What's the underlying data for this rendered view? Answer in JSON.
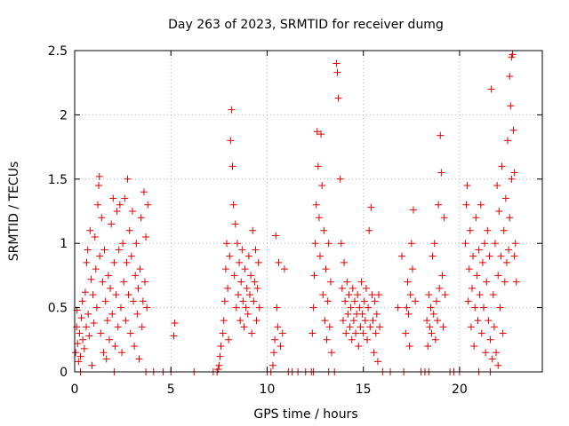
{
  "chart_data": {
    "type": "scatter",
    "title": "Day 263 of 2023, SRMTID for receiver dumg",
    "xlabel": "GPS time / hours",
    "ylabel": "SRMTID / TECUs",
    "xlim": [
      0,
      24.3
    ],
    "ylim": [
      0,
      2.5
    ],
    "x_ticks": [
      0,
      5,
      10,
      15,
      20
    ],
    "x_tick_labels": [
      "0",
      "5",
      "10",
      "15",
      "20"
    ],
    "y_ticks": [
      0,
      0.5,
      1,
      1.5,
      2,
      2.5
    ],
    "y_tick_labels": [
      "0",
      "0.5",
      "1",
      "1.5",
      "2",
      "2.5"
    ],
    "grid": true,
    "marker": "+",
    "color": "#e00000",
    "series": [
      {
        "name": "SRMTID",
        "points": [
          [
            0.05,
            0.15
          ],
          [
            0.1,
            0.35
          ],
          [
            0.12,
            0.48
          ],
          [
            0.15,
            0.22
          ],
          [
            0.2,
            0.08
          ],
          [
            0.25,
            0.3
          ],
          [
            0.3,
            0.12
          ],
          [
            0.35,
            0.42
          ],
          [
            0.4,
            0.55
          ],
          [
            0.42,
            0.25
          ],
          [
            0.5,
            0.18
          ],
          [
            0.55,
            0.62
          ],
          [
            0.6,
            0.35
          ],
          [
            0.62,
            0.85
          ],
          [
            0.68,
            0.95
          ],
          [
            0.7,
            0.45
          ],
          [
            0.75,
            0.28
          ],
          [
            0.8,
            1.1
          ],
          [
            0.85,
            0.72
          ],
          [
            0.9,
            0.05
          ],
          [
            0.95,
            0.6
          ],
          [
            1.0,
            0.38
          ],
          [
            1.05,
            1.05
          ],
          [
            1.1,
            0.8
          ],
          [
            1.15,
            0.5
          ],
          [
            1.2,
            1.3
          ],
          [
            1.25,
            1.45
          ],
          [
            1.28,
            1.52
          ],
          [
            1.3,
            0.9
          ],
          [
            1.35,
            0.3
          ],
          [
            1.4,
            1.2
          ],
          [
            1.45,
            0.7
          ],
          [
            1.5,
            0.15
          ],
          [
            1.55,
            0.95
          ],
          [
            1.6,
            0.55
          ],
          [
            1.65,
            0.1
          ],
          [
            1.7,
            0.4
          ],
          [
            1.75,
            0.75
          ],
          [
            1.8,
            0.25
          ],
          [
            1.85,
            0.65
          ],
          [
            1.9,
            1.15
          ],
          [
            1.95,
            0.45
          ],
          [
            2.0,
            1.35
          ],
          [
            2.05,
            0.85
          ],
          [
            2.1,
            0.2
          ],
          [
            2.15,
            0.6
          ],
          [
            2.2,
            1.25
          ],
          [
            2.25,
            0.35
          ],
          [
            2.3,
            0.95
          ],
          [
            2.35,
            1.3
          ],
          [
            2.4,
            0.5
          ],
          [
            2.45,
            0.15
          ],
          [
            2.5,
            1.0
          ],
          [
            2.55,
            0.7
          ],
          [
            2.6,
            1.35
          ],
          [
            2.65,
            0.4
          ],
          [
            2.7,
            0.85
          ],
          [
            2.75,
            1.5
          ],
          [
            2.8,
            0.6
          ],
          [
            2.85,
            1.1
          ],
          [
            2.9,
            0.3
          ],
          [
            2.95,
            0.9
          ],
          [
            3.0,
            1.25
          ],
          [
            3.05,
            0.55
          ],
          [
            3.1,
            0.2
          ],
          [
            3.15,
            0.75
          ],
          [
            3.2,
            1.0
          ],
          [
            3.25,
            0.45
          ],
          [
            3.3,
            0.65
          ],
          [
            3.35,
            0.1
          ],
          [
            3.4,
            0.8
          ],
          [
            3.45,
            1.2
          ],
          [
            3.5,
            0.35
          ],
          [
            3.55,
            0.55
          ],
          [
            3.6,
            1.4
          ],
          [
            3.65,
            0.7
          ],
          [
            3.7,
            1.05
          ],
          [
            3.75,
            0.5
          ],
          [
            3.8,
            1.3
          ],
          [
            0.3,
            0.0
          ],
          [
            4.1,
            0.0
          ],
          [
            4.6,
            0.0
          ],
          [
            5.0,
            0.0
          ],
          [
            5.15,
            0.28
          ],
          [
            5.2,
            0.38
          ],
          [
            6.2,
            0.0
          ],
          [
            7.2,
            0.0
          ],
          [
            7.4,
            0.0
          ],
          [
            7.5,
            0.05
          ],
          [
            7.55,
            0.12
          ],
          [
            7.6,
            0.2
          ],
          [
            7.7,
            0.3
          ],
          [
            7.75,
            0.4
          ],
          [
            7.8,
            0.55
          ],
          [
            7.85,
            0.8
          ],
          [
            7.9,
            1.0
          ],
          [
            7.95,
            0.65
          ],
          [
            8.0,
            0.25
          ],
          [
            8.05,
            0.9
          ],
          [
            8.1,
            1.8
          ],
          [
            8.15,
            2.04
          ],
          [
            8.2,
            1.6
          ],
          [
            8.25,
            1.3
          ],
          [
            8.3,
            0.75
          ],
          [
            8.35,
            1.15
          ],
          [
            8.4,
            0.5
          ],
          [
            8.45,
            1.0
          ],
          [
            8.5,
            0.6
          ],
          [
            8.55,
            0.85
          ],
          [
            8.6,
            0.4
          ],
          [
            8.65,
            0.7
          ],
          [
            8.7,
            0.95
          ],
          [
            8.75,
            0.55
          ],
          [
            8.8,
            0.35
          ],
          [
            8.85,
            0.8
          ],
          [
            8.9,
            0.5
          ],
          [
            8.95,
            0.65
          ],
          [
            9.0,
            0.45
          ],
          [
            9.05,
            0.9
          ],
          [
            9.1,
            0.6
          ],
          [
            9.15,
            0.75
          ],
          [
            9.2,
            0.3
          ],
          [
            9.25,
            1.1
          ],
          [
            9.3,
            0.55
          ],
          [
            9.35,
            0.7
          ],
          [
            9.4,
            0.95
          ],
          [
            9.45,
            0.4
          ],
          [
            9.5,
            0.65
          ],
          [
            9.55,
            0.85
          ],
          [
            9.6,
            0.5
          ],
          [
            10.0,
            0.0
          ],
          [
            10.2,
            0.0
          ],
          [
            10.3,
            0.05
          ],
          [
            10.35,
            0.15
          ],
          [
            10.4,
            0.25
          ],
          [
            10.45,
            1.06
          ],
          [
            10.5,
            0.5
          ],
          [
            10.55,
            0.35
          ],
          [
            10.6,
            0.85
          ],
          [
            10.7,
            0.2
          ],
          [
            10.8,
            0.3
          ],
          [
            10.9,
            0.8
          ],
          [
            11.1,
            0.0
          ],
          [
            11.3,
            0.0
          ],
          [
            11.6,
            0.0
          ],
          [
            12.0,
            0.0
          ],
          [
            12.3,
            0.0
          ],
          [
            12.35,
            0.3
          ],
          [
            12.4,
            0.5
          ],
          [
            12.45,
            0.75
          ],
          [
            12.5,
            1.0
          ],
          [
            12.55,
            1.3
          ],
          [
            12.6,
            1.87
          ],
          [
            12.65,
            1.6
          ],
          [
            12.7,
            1.2
          ],
          [
            12.75,
            0.9
          ],
          [
            12.8,
            1.85
          ],
          [
            12.85,
            1.45
          ],
          [
            12.9,
            0.6
          ],
          [
            12.95,
            1.1
          ],
          [
            13.0,
            0.4
          ],
          [
            13.05,
            0.8
          ],
          [
            13.1,
            0.25
          ],
          [
            13.15,
            0.55
          ],
          [
            13.2,
            1.0
          ],
          [
            13.25,
            0.35
          ],
          [
            13.3,
            0.7
          ],
          [
            13.35,
            0.15
          ],
          [
            13.5,
            0.0
          ],
          [
            13.6,
            2.4
          ],
          [
            13.65,
            2.33
          ],
          [
            13.7,
            2.13
          ],
          [
            13.8,
            1.5
          ],
          [
            13.85,
            1.0
          ],
          [
            13.9,
            0.65
          ],
          [
            13.95,
            0.4
          ],
          [
            14.0,
            0.85
          ],
          [
            14.05,
            0.55
          ],
          [
            14.1,
            0.3
          ],
          [
            14.15,
            0.7
          ],
          [
            14.2,
            0.45
          ],
          [
            14.25,
            0.6
          ],
          [
            14.3,
            0.35
          ],
          [
            14.35,
            0.5
          ],
          [
            14.4,
            0.25
          ],
          [
            14.45,
            0.65
          ],
          [
            14.5,
            0.4
          ],
          [
            14.55,
            0.55
          ],
          [
            14.6,
            0.3
          ],
          [
            14.65,
            0.45
          ],
          [
            14.7,
            0.6
          ],
          [
            14.75,
            0.2
          ],
          [
            14.8,
            0.5
          ],
          [
            14.85,
            0.35
          ],
          [
            14.9,
            0.7
          ],
          [
            14.95,
            0.45
          ],
          [
            15.0,
            0.3
          ],
          [
            15.05,
            0.55
          ],
          [
            15.1,
            0.4
          ],
          [
            15.15,
            0.65
          ],
          [
            15.2,
            0.25
          ],
          [
            15.25,
            0.5
          ],
          [
            15.3,
            1.1
          ],
          [
            15.35,
            0.35
          ],
          [
            15.4,
            1.28
          ],
          [
            15.45,
            0.6
          ],
          [
            15.5,
            0.4
          ],
          [
            15.55,
            0.15
          ],
          [
            15.6,
            0.55
          ],
          [
            15.65,
            0.3
          ],
          [
            15.7,
            0.45
          ],
          [
            15.75,
            0.08
          ],
          [
            15.8,
            0.6
          ],
          [
            15.85,
            0.35
          ],
          [
            16.0,
            0.0
          ],
          [
            16.4,
            0.0
          ],
          [
            16.8,
            0.5
          ],
          [
            17.0,
            0.9
          ],
          [
            17.2,
            0.3
          ],
          [
            17.25,
            0.5
          ],
          [
            17.3,
            0.7
          ],
          [
            17.35,
            0.45
          ],
          [
            17.4,
            0.2
          ],
          [
            17.45,
            0.6
          ],
          [
            17.5,
            1.0
          ],
          [
            17.55,
            0.8
          ],
          [
            17.6,
            1.26
          ],
          [
            17.7,
            0.55
          ],
          [
            18.0,
            0.0
          ],
          [
            18.2,
            0.0
          ],
          [
            18.3,
            0.4
          ],
          [
            18.35,
            0.2
          ],
          [
            18.4,
            0.6
          ],
          [
            18.45,
            0.35
          ],
          [
            18.5,
            0.5
          ],
          [
            18.55,
            0.3
          ],
          [
            18.6,
            0.9
          ],
          [
            18.65,
            0.45
          ],
          [
            18.7,
            1.0
          ],
          [
            18.75,
            0.25
          ],
          [
            18.8,
            0.55
          ],
          [
            18.85,
            0.4
          ],
          [
            18.9,
            1.3
          ],
          [
            18.95,
            0.65
          ],
          [
            19.0,
            1.84
          ],
          [
            19.05,
            1.55
          ],
          [
            19.1,
            0.75
          ],
          [
            19.15,
            0.35
          ],
          [
            19.2,
            1.2
          ],
          [
            19.25,
            0.6
          ],
          [
            19.5,
            0.0
          ],
          [
            19.7,
            0.0
          ],
          [
            20.0,
            0.0
          ],
          [
            20.3,
            1.0
          ],
          [
            20.35,
            1.3
          ],
          [
            20.4,
            1.45
          ],
          [
            20.45,
            0.55
          ],
          [
            20.5,
            0.8
          ],
          [
            20.55,
            1.1
          ],
          [
            20.6,
            0.35
          ],
          [
            20.65,
            0.65
          ],
          [
            20.7,
            0.9
          ],
          [
            20.75,
            0.2
          ],
          [
            20.8,
            0.5
          ],
          [
            20.85,
            1.2
          ],
          [
            20.9,
            0.75
          ],
          [
            20.95,
            0.4
          ],
          [
            21.0,
            0.95
          ],
          [
            21.05,
            0.6
          ],
          [
            21.1,
            1.3
          ],
          [
            21.15,
            0.3
          ],
          [
            21.2,
            0.85
          ],
          [
            21.25,
            0.5
          ],
          [
            21.3,
            1.0
          ],
          [
            21.35,
            0.15
          ],
          [
            21.4,
            0.7
          ],
          [
            21.45,
            1.1
          ],
          [
            21.5,
            0.4
          ],
          [
            21.55,
            0.9
          ],
          [
            21.6,
            0.25
          ],
          [
            21.65,
            2.2
          ],
          [
            21.7,
            0.1
          ],
          [
            21.75,
            0.6
          ],
          [
            21.8,
            0.35
          ],
          [
            21.85,
            1.0
          ],
          [
            21.9,
            0.15
          ],
          [
            21.95,
            1.45
          ],
          [
            22.0,
            0.75
          ],
          [
            22.05,
            1.25
          ],
          [
            22.1,
            0.5
          ],
          [
            22.15,
            0.9
          ],
          [
            22.2,
            1.6
          ],
          [
            22.25,
            0.3
          ],
          [
            22.3,
            1.1
          ],
          [
            22.35,
            0.7
          ],
          [
            22.4,
            1.35
          ],
          [
            22.45,
            0.85
          ],
          [
            22.5,
            1.8
          ],
          [
            22.55,
            0.95
          ],
          [
            22.6,
            1.2
          ],
          [
            22.65,
            2.07
          ],
          [
            22.7,
            2.45
          ],
          [
            22.75,
            2.47
          ],
          [
            22.8,
            1.88
          ],
          [
            22.85,
            1.55
          ],
          [
            22.9,
            1.0
          ],
          [
            22.95,
            0.7
          ],
          [
            22.6,
            2.3
          ],
          [
            22.7,
            1.5
          ],
          [
            22.85,
            0.9
          ],
          [
            2.05,
            0.0
          ],
          [
            3.7,
            0.0
          ],
          [
            7.45,
            0.02
          ],
          [
            12.4,
            0.0
          ],
          [
            13.2,
            0.0
          ],
          [
            18.4,
            0.0
          ],
          [
            21.0,
            0.0
          ],
          [
            21.6,
            0.0
          ],
          [
            22.0,
            0.05
          ],
          [
            17.1,
            0.0
          ]
        ]
      }
    ]
  }
}
